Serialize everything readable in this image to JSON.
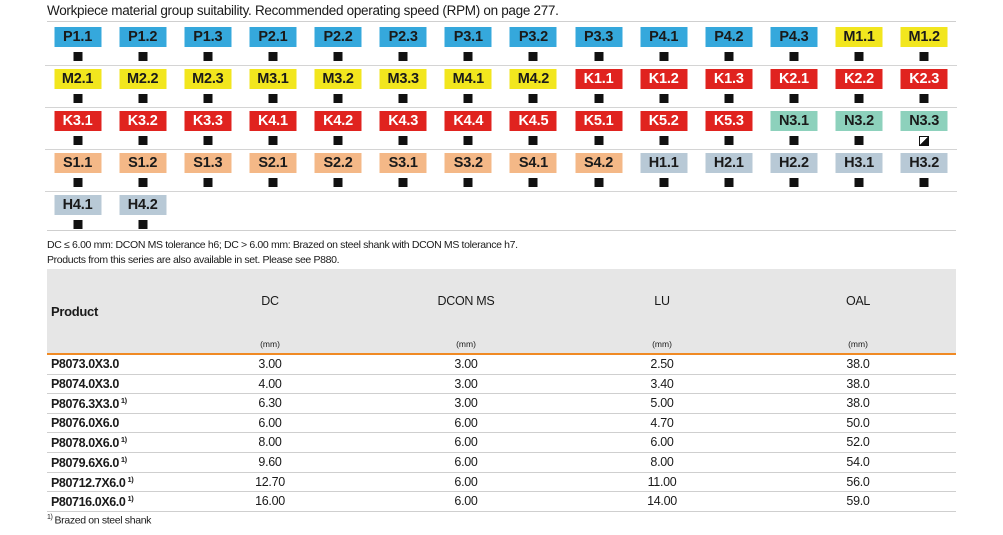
{
  "heading": "Workpiece material group suitability. Recommended operating speed (RPM) on page 277.",
  "materials": [
    [
      {
        "code": "P1.1",
        "group": "p",
        "mark": "full"
      },
      {
        "code": "P1.2",
        "group": "p",
        "mark": "full"
      },
      {
        "code": "P1.3",
        "group": "p",
        "mark": "full"
      },
      {
        "code": "P2.1",
        "group": "p",
        "mark": "full"
      },
      {
        "code": "P2.2",
        "group": "p",
        "mark": "full"
      },
      {
        "code": "P2.3",
        "group": "p",
        "mark": "full"
      },
      {
        "code": "P3.1",
        "group": "p",
        "mark": "full"
      },
      {
        "code": "P3.2",
        "group": "p",
        "mark": "full"
      },
      {
        "code": "P3.3",
        "group": "p",
        "mark": "full"
      },
      {
        "code": "P4.1",
        "group": "p",
        "mark": "full"
      },
      {
        "code": "P4.2",
        "group": "p",
        "mark": "full"
      },
      {
        "code": "P4.3",
        "group": "p",
        "mark": "full"
      },
      {
        "code": "M1.1",
        "group": "m",
        "mark": "full"
      },
      {
        "code": "M1.2",
        "group": "m",
        "mark": "full"
      }
    ],
    [
      {
        "code": "M2.1",
        "group": "m",
        "mark": "full"
      },
      {
        "code": "M2.2",
        "group": "m",
        "mark": "full"
      },
      {
        "code": "M2.3",
        "group": "m",
        "mark": "full"
      },
      {
        "code": "M3.1",
        "group": "m",
        "mark": "full"
      },
      {
        "code": "M3.2",
        "group": "m",
        "mark": "full"
      },
      {
        "code": "M3.3",
        "group": "m",
        "mark": "full"
      },
      {
        "code": "M4.1",
        "group": "m",
        "mark": "full"
      },
      {
        "code": "M4.2",
        "group": "m",
        "mark": "full"
      },
      {
        "code": "K1.1",
        "group": "k",
        "mark": "full"
      },
      {
        "code": "K1.2",
        "group": "k",
        "mark": "full"
      },
      {
        "code": "K1.3",
        "group": "k",
        "mark": "full"
      },
      {
        "code": "K2.1",
        "group": "k",
        "mark": "full"
      },
      {
        "code": "K2.2",
        "group": "k",
        "mark": "full"
      },
      {
        "code": "K2.3",
        "group": "k",
        "mark": "full"
      }
    ],
    [
      {
        "code": "K3.1",
        "group": "k",
        "mark": "full"
      },
      {
        "code": "K3.2",
        "group": "k",
        "mark": "full"
      },
      {
        "code": "K3.3",
        "group": "k",
        "mark": "full"
      },
      {
        "code": "K4.1",
        "group": "k",
        "mark": "full"
      },
      {
        "code": "K4.2",
        "group": "k",
        "mark": "full"
      },
      {
        "code": "K4.3",
        "group": "k",
        "mark": "full"
      },
      {
        "code": "K4.4",
        "group": "k",
        "mark": "full"
      },
      {
        "code": "K4.5",
        "group": "k",
        "mark": "full"
      },
      {
        "code": "K5.1",
        "group": "k",
        "mark": "full"
      },
      {
        "code": "K5.2",
        "group": "k",
        "mark": "full"
      },
      {
        "code": "K5.3",
        "group": "k",
        "mark": "full"
      },
      {
        "code": "N3.1",
        "group": "n",
        "mark": "full"
      },
      {
        "code": "N3.2",
        "group": "n",
        "mark": "full"
      },
      {
        "code": "N3.3",
        "group": "n",
        "mark": "half"
      }
    ],
    [
      {
        "code": "S1.1",
        "group": "s",
        "mark": "full"
      },
      {
        "code": "S1.2",
        "group": "s",
        "mark": "full"
      },
      {
        "code": "S1.3",
        "group": "s",
        "mark": "full"
      },
      {
        "code": "S2.1",
        "group": "s",
        "mark": "full"
      },
      {
        "code": "S2.2",
        "group": "s",
        "mark": "full"
      },
      {
        "code": "S3.1",
        "group": "s",
        "mark": "full"
      },
      {
        "code": "S3.2",
        "group": "s",
        "mark": "full"
      },
      {
        "code": "S4.1",
        "group": "s",
        "mark": "full"
      },
      {
        "code": "S4.2",
        "group": "s",
        "mark": "full"
      },
      {
        "code": "H1.1",
        "group": "h",
        "mark": "full"
      },
      {
        "code": "H2.1",
        "group": "h",
        "mark": "full"
      },
      {
        "code": "H2.2",
        "group": "h",
        "mark": "full"
      },
      {
        "code": "H3.1",
        "group": "h",
        "mark": "full"
      },
      {
        "code": "H3.2",
        "group": "h",
        "mark": "full"
      }
    ],
    [
      {
        "code": "H4.1",
        "group": "h",
        "mark": "full"
      },
      {
        "code": "H4.2",
        "group": "h",
        "mark": "full"
      }
    ]
  ],
  "group_colors": {
    "p": "#35a8dc",
    "m": "#f2e61e",
    "k": "#e0231f",
    "n": "#8dd1bc",
    "s": "#f4b887",
    "h": "#b8c9d6"
  },
  "notes": {
    "tolerance": "DC ≤ 6.00 mm: DCON MS tolerance h6; DC > 6.00 mm: Brazed on steel shank with DCON MS tolerance h7.",
    "set": "Products from this series are also available in set. Please see P880."
  },
  "table": {
    "columns": [
      {
        "key": "product",
        "label": "Product",
        "unit": ""
      },
      {
        "key": "dc",
        "label": "DC",
        "unit": "(mm)"
      },
      {
        "key": "dcon",
        "label": "DCON MS",
        "unit": "(mm)"
      },
      {
        "key": "lu",
        "label": "LU",
        "unit": "(mm)"
      },
      {
        "key": "oal",
        "label": "OAL",
        "unit": "(mm)"
      }
    ],
    "rows": [
      {
        "product": "P8073.0X3.0",
        "sup": "",
        "dc": "3.00",
        "dcon": "3.00",
        "lu": "2.50",
        "oal": "38.0"
      },
      {
        "product": "P8074.0X3.0",
        "sup": "",
        "dc": "4.00",
        "dcon": "3.00",
        "lu": "3.40",
        "oal": "38.0"
      },
      {
        "product": "P8076.3X3.0",
        "sup": "1)",
        "dc": "6.30",
        "dcon": "3.00",
        "lu": "5.00",
        "oal": "38.0"
      },
      {
        "product": "P8076.0X6.0",
        "sup": "",
        "dc": "6.00",
        "dcon": "6.00",
        "lu": "4.70",
        "oal": "50.0"
      },
      {
        "product": "P8078.0X6.0",
        "sup": "1)",
        "dc": "8.00",
        "dcon": "6.00",
        "lu": "6.00",
        "oal": "52.0"
      },
      {
        "product": "P8079.6X6.0",
        "sup": "1)",
        "dc": "9.60",
        "dcon": "6.00",
        "lu": "8.00",
        "oal": "54.0"
      },
      {
        "product": "P80712.7X6.0",
        "sup": "1)",
        "dc": "12.70",
        "dcon": "6.00",
        "lu": "11.00",
        "oal": "56.0"
      },
      {
        "product": "P80716.0X6.0",
        "sup": "1)",
        "dc": "16.00",
        "dcon": "6.00",
        "lu": "14.00",
        "oal": "59.0"
      }
    ],
    "footnote_marker": "1)",
    "footnote": "Brazed on steel shank"
  },
  "accent_color": "#f08a24"
}
